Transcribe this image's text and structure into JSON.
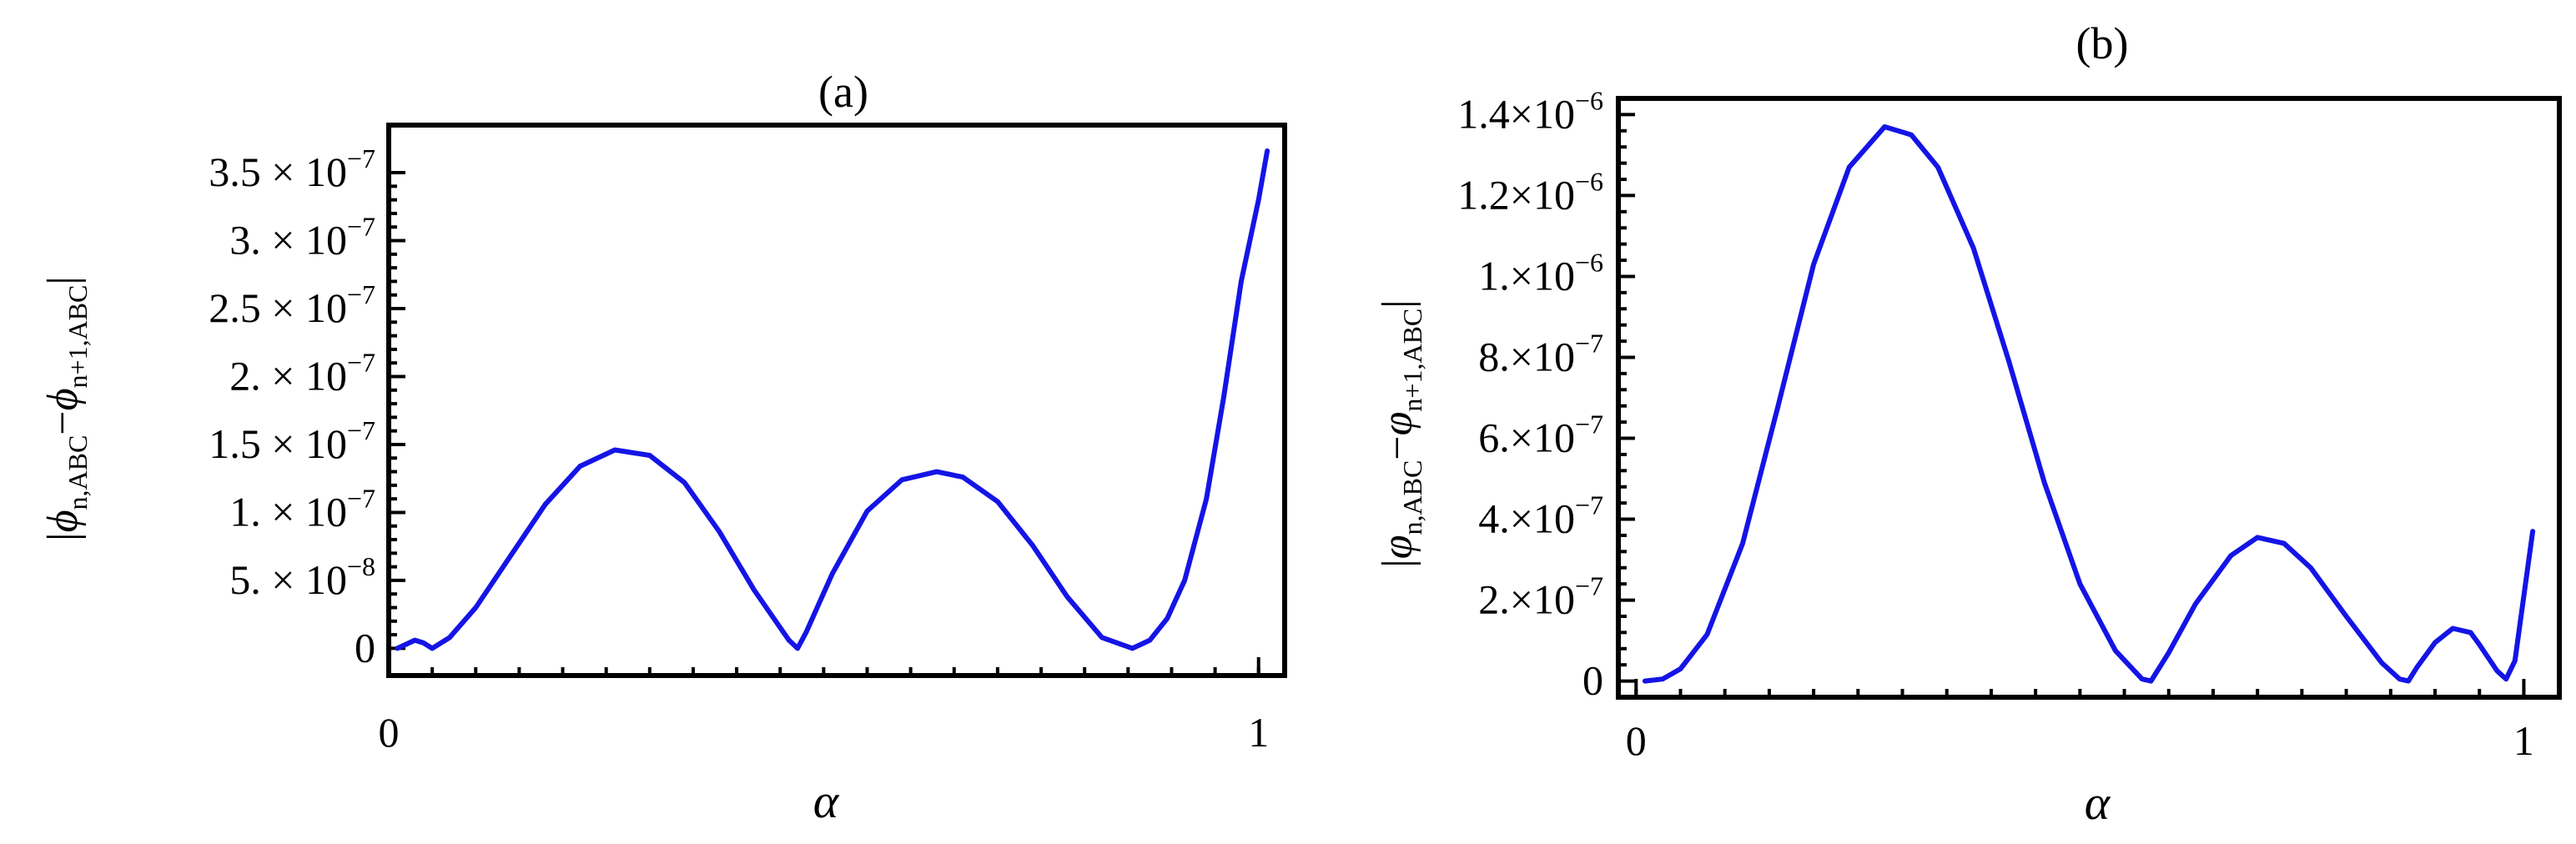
{
  "chart_data": [
    {
      "type": "line",
      "panel_label": "(a)",
      "xlabel": "α",
      "ylabel_parts": {
        "open": "|",
        "sym": "ϕ",
        "sub1": "n,ABC",
        "minus": "−",
        "sub2": "n+1,ABC",
        "close": "|"
      },
      "xlim": [
        0,
        1.03
      ],
      "ylim": [
        -2e-08,
        3.85e-07
      ],
      "x_ticks": [
        {
          "value": 0,
          "label": "0"
        },
        {
          "value": 1,
          "label": "1"
        }
      ],
      "y_ticks": [
        {
          "value": 0,
          "mant": "0",
          "exp": ""
        },
        {
          "value": 5e-08,
          "mant": "5. × 10",
          "exp": "−8"
        },
        {
          "value": 1e-07,
          "mant": "1. × 10",
          "exp": "−7"
        },
        {
          "value": 1.5e-07,
          "mant": "1.5 × 10",
          "exp": "−7"
        },
        {
          "value": 2e-07,
          "mant": "2. × 10",
          "exp": "−7"
        },
        {
          "value": 2.5e-07,
          "mant": "2.5 × 10",
          "exp": "−7"
        },
        {
          "value": 3e-07,
          "mant": "3. × 10",
          "exp": "−7"
        },
        {
          "value": 3.5e-07,
          "mant": "3.5 × 10",
          "exp": "−7"
        }
      ],
      "series": [
        {
          "color": "#1414e6",
          "x": [
            0.01,
            0.02,
            0.03,
            0.04,
            0.05,
            0.07,
            0.1,
            0.14,
            0.18,
            0.22,
            0.26,
            0.3,
            0.34,
            0.38,
            0.42,
            0.46,
            0.47,
            0.48,
            0.51,
            0.55,
            0.59,
            0.63,
            0.66,
            0.7,
            0.74,
            0.78,
            0.82,
            0.855,
            0.875,
            0.895,
            0.915,
            0.94,
            0.96,
            0.98,
            1.0,
            1.01
          ],
          "y": [
            0.0,
            3e-09,
            6e-09,
            4e-09,
            0.0,
            8e-09,
            3e-08,
            6.8e-08,
            1.06e-07,
            1.34e-07,
            1.46e-07,
            1.42e-07,
            1.22e-07,
            8.6e-08,
            4.3e-08,
            6e-09,
            0.0,
            1.2e-08,
            5.5e-08,
            1.01e-07,
            1.24e-07,
            1.3e-07,
            1.26e-07,
            1.08e-07,
            7.6e-08,
            3.8e-08,
            8e-09,
            0.0,
            6e-09,
            2.2e-08,
            5e-08,
            1.1e-07,
            1.85e-07,
            2.7e-07,
            3.3e-07,
            3.66e-07
          ]
        }
      ]
    },
    {
      "type": "line",
      "panel_label": "(b)",
      "xlabel": "α",
      "ylabel_parts": {
        "open": "|",
        "sym": "φ",
        "sub1": "n,ABC",
        "minus": "−",
        "sub2": "n+1,ABC",
        "close": "|"
      },
      "xlim": [
        -0.02,
        1.04
      ],
      "ylim": [
        -4e-08,
        1.44e-06
      ],
      "x_ticks": [
        {
          "value": 0,
          "label": "0"
        },
        {
          "value": 1,
          "label": "1"
        }
      ],
      "y_ticks": [
        {
          "value": 0,
          "mant": "0",
          "exp": ""
        },
        {
          "value": 2e-07,
          "mant": "2.×10",
          "exp": "−7"
        },
        {
          "value": 4e-07,
          "mant": "4.×10",
          "exp": "−7"
        },
        {
          "value": 6e-07,
          "mant": "6.×10",
          "exp": "−7"
        },
        {
          "value": 8e-07,
          "mant": "8.×10",
          "exp": "−7"
        },
        {
          "value": 1e-06,
          "mant": "1.×10",
          "exp": "−6"
        },
        {
          "value": 1.2e-06,
          "mant": "1.2×10",
          "exp": "−6"
        },
        {
          "value": 1.4e-06,
          "mant": "1.4×10",
          "exp": "−6"
        }
      ],
      "series": [
        {
          "color": "#1414e6",
          "x": [
            0.01,
            0.03,
            0.05,
            0.08,
            0.12,
            0.16,
            0.2,
            0.24,
            0.28,
            0.31,
            0.34,
            0.38,
            0.42,
            0.46,
            0.5,
            0.54,
            0.57,
            0.58,
            0.6,
            0.63,
            0.67,
            0.7,
            0.73,
            0.76,
            0.8,
            0.84,
            0.86,
            0.87,
            0.88,
            0.9,
            0.92,
            0.94,
            0.95,
            0.97,
            0.98,
            0.99,
            1.01
          ],
          "y": [
            0.0,
            5e-09,
            3e-08,
            1.15e-07,
            3.4e-07,
            6.8e-07,
            1.03e-06,
            1.27e-06,
            1.37e-06,
            1.35e-06,
            1.27e-06,
            1.07e-06,
            7.9e-07,
            4.9e-07,
            2.4e-07,
            7.5e-08,
            5e-09,
            0.0,
            7e-08,
            1.9e-07,
            3.1e-07,
            3.55e-07,
            3.4e-07,
            2.8e-07,
            1.6e-07,
            4.5e-08,
            5e-09,
            0.0,
            3.5e-08,
            9.5e-08,
            1.3e-07,
            1.2e-07,
            9e-08,
            2.5e-08,
            5e-09,
            5e-08,
            3.7e-07
          ]
        }
      ]
    }
  ]
}
